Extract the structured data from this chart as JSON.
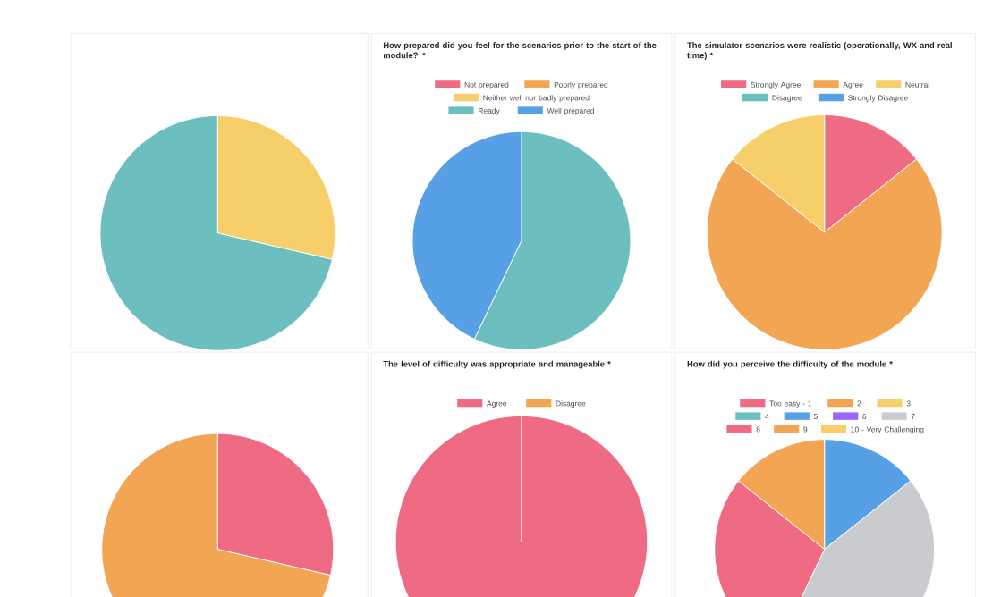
{
  "chart_data": [
    {
      "type": "pie",
      "categories": [
        null,
        null
      ],
      "values": [
        28.6,
        71.4
      ],
      "colors": [
        "#f6cf6b",
        "#6cbfbe"
      ]
    },
    {
      "type": "pie",
      "title": "How prepared did you feel for the scenarios prior to the start of the module? *",
      "categories": [
        "Not prepared",
        "Poorly prepared",
        "Neither well nor badly prepared",
        "Ready",
        "Well prepared"
      ],
      "values": [
        0,
        0,
        0,
        57.1,
        42.9
      ],
      "colors": [
        "#ef6b83",
        "#f2a553",
        "#f6cf6b",
        "#6cbfbe",
        "#57a0e5"
      ],
      "legend": "top"
    },
    {
      "type": "pie",
      "title": "The simulator scenarios were realistic (operationally, WX and real time) *",
      "categories": [
        "Strongly Agree",
        "Agree",
        "Neutral",
        "Disagree",
        "Strongly Disagree"
      ],
      "values": [
        14.3,
        71.4,
        14.3,
        0,
        0
      ],
      "colors": [
        "#ef6b83",
        "#f2a553",
        "#f6cf6b",
        "#6cbfbe",
        "#57a0e5"
      ],
      "legend": "top"
    },
    {
      "type": "pie",
      "categories": [
        null,
        null
      ],
      "values": [
        28.6,
        71.4
      ],
      "colors": [
        "#ef6b83",
        "#f2a553"
      ]
    },
    {
      "type": "pie",
      "title": "The level of difficulty was appropriate and manageable *",
      "categories": [
        "Agree",
        "Disagree"
      ],
      "values": [
        100,
        0
      ],
      "colors": [
        "#ef6b83",
        "#f2a553"
      ],
      "legend": "top"
    },
    {
      "type": "pie",
      "title": "How did you perceive the difficulty of the module *",
      "categories": [
        "Too easy - 1",
        "2",
        "3",
        "4",
        "5",
        "6",
        "7",
        "8",
        "9",
        "10 - Very Challenging"
      ],
      "values": [
        0,
        0,
        0,
        0,
        14.3,
        0,
        42.8,
        28.6,
        14.3,
        0
      ],
      "colors": [
        "#ef6b83",
        "#f2a553",
        "#f6cf6b",
        "#6cbfbe",
        "#57a0e5",
        "#9966ff",
        "#c9cbcf",
        "#ef6b83",
        "#f2a553",
        "#f6cf6b"
      ],
      "legend": "top"
    }
  ]
}
